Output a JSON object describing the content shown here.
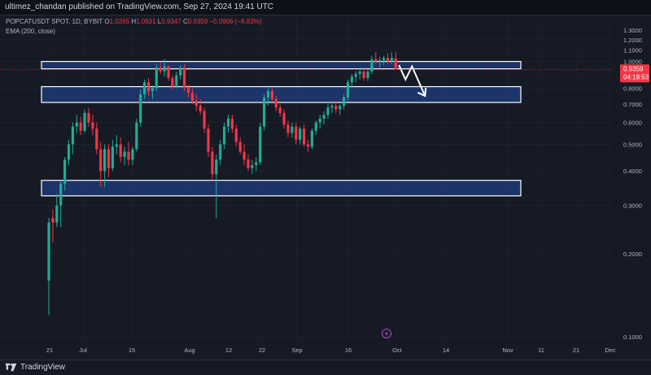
{
  "header": {
    "publisher": "ultimez_chandan published on TradingView.com, Sep 27, 2024 19:41 UTC"
  },
  "legend": {
    "symbol": "POPCATUSDT SPOT, 1D, BYBIT",
    "o_label": "O",
    "o": "1.0265",
    "h_label": "H",
    "h": "1.0831",
    "l_label": "L",
    "l": "0.9347",
    "c_label": "C",
    "c": "0.9359",
    "chg": "−0.0906 (−8.83%)",
    "ema": "EMA (200, close)"
  },
  "price_tag": {
    "price": "0.9359",
    "countdown": "04:18:53"
  },
  "footer": {
    "brand": "TradingView"
  },
  "colors": {
    "up": "#22ab94",
    "down": "#f23645",
    "zone_fill": "#1e3a75",
    "zone_border": "#ffffff",
    "bg": "#161a25"
  },
  "icons": {
    "event_marker": "lightning-icon",
    "logo": "tradingview-logo-icon"
  },
  "chart_data": {
    "type": "candlestick",
    "scale": "log",
    "y_ticks": [
      "1.3000",
      "1.2000",
      "1.1000",
      "1.0000",
      "0.9000",
      "0.8000",
      "0.7000",
      "0.6000",
      "0.5000",
      "0.4000",
      "0.3000",
      "0.2000",
      "0.1000"
    ],
    "x_ticks": [
      "21",
      "Jul",
      "15",
      "Aug",
      "12",
      "22",
      "Sep",
      "16",
      "Oct",
      "14",
      "Nov",
      "11",
      "21",
      "Dec"
    ],
    "zones": [
      {
        "low": 0.94,
        "high": 1.0
      },
      {
        "low": 0.71,
        "high": 0.81
      },
      {
        "low": 0.325,
        "high": 0.37
      }
    ],
    "projection": [
      0.97,
      0.86,
      0.96,
      0.75
    ],
    "candles": [
      [
        0.16,
        0.27,
        0.12,
        0.26
      ],
      [
        0.27,
        0.29,
        0.22,
        0.26
      ],
      [
        0.26,
        0.33,
        0.25,
        0.3
      ],
      [
        0.3,
        0.37,
        0.25,
        0.36
      ],
      [
        0.36,
        0.45,
        0.34,
        0.44
      ],
      [
        0.44,
        0.52,
        0.42,
        0.5
      ],
      [
        0.5,
        0.6,
        0.46,
        0.58
      ],
      [
        0.58,
        0.64,
        0.55,
        0.6
      ],
      [
        0.6,
        0.63,
        0.54,
        0.56
      ],
      [
        0.56,
        0.67,
        0.55,
        0.65
      ],
      [
        0.65,
        0.68,
        0.58,
        0.6
      ],
      [
        0.6,
        0.64,
        0.54,
        0.57
      ],
      [
        0.57,
        0.6,
        0.46,
        0.48
      ],
      [
        0.48,
        0.51,
        0.35,
        0.4
      ],
      [
        0.4,
        0.5,
        0.35,
        0.48
      ],
      [
        0.48,
        0.5,
        0.38,
        0.41
      ],
      [
        0.41,
        0.52,
        0.4,
        0.49
      ],
      [
        0.49,
        0.54,
        0.46,
        0.5
      ],
      [
        0.5,
        0.53,
        0.43,
        0.45
      ],
      [
        0.45,
        0.49,
        0.42,
        0.47
      ],
      [
        0.47,
        0.51,
        0.42,
        0.44
      ],
      [
        0.44,
        0.49,
        0.42,
        0.48
      ],
      [
        0.48,
        0.62,
        0.47,
        0.6
      ],
      [
        0.6,
        0.79,
        0.58,
        0.76
      ],
      [
        0.76,
        0.86,
        0.73,
        0.84
      ],
      [
        0.84,
        0.87,
        0.75,
        0.78
      ],
      [
        0.78,
        0.82,
        0.73,
        0.8
      ],
      [
        0.8,
        0.98,
        0.78,
        0.95
      ],
      [
        0.95,
        0.99,
        0.9,
        0.92
      ],
      [
        0.92,
        1.02,
        0.88,
        0.96
      ],
      [
        0.96,
        0.97,
        0.85,
        0.87
      ],
      [
        0.87,
        0.89,
        0.79,
        0.81
      ],
      [
        0.81,
        0.92,
        0.8,
        0.89
      ],
      [
        0.89,
        0.97,
        0.86,
        0.95
      ],
      [
        0.95,
        0.98,
        0.78,
        0.8
      ],
      [
        0.8,
        0.82,
        0.74,
        0.77
      ],
      [
        0.77,
        0.8,
        0.7,
        0.72
      ],
      [
        0.72,
        0.76,
        0.66,
        0.69
      ],
      [
        0.69,
        0.73,
        0.64,
        0.66
      ],
      [
        0.66,
        0.68,
        0.55,
        0.57
      ],
      [
        0.57,
        0.59,
        0.45,
        0.47
      ],
      [
        0.47,
        0.49,
        0.37,
        0.39
      ],
      [
        0.39,
        0.46,
        0.27,
        0.44
      ],
      [
        0.44,
        0.52,
        0.42,
        0.5
      ],
      [
        0.5,
        0.6,
        0.48,
        0.58
      ],
      [
        0.58,
        0.64,
        0.55,
        0.62
      ],
      [
        0.62,
        0.64,
        0.55,
        0.57
      ],
      [
        0.57,
        0.59,
        0.49,
        0.51
      ],
      [
        0.51,
        0.53,
        0.46,
        0.47
      ],
      [
        0.47,
        0.5,
        0.42,
        0.44
      ],
      [
        0.44,
        0.46,
        0.4,
        0.41
      ],
      [
        0.41,
        0.44,
        0.39,
        0.42
      ],
      [
        0.42,
        0.45,
        0.4,
        0.43
      ],
      [
        0.43,
        0.6,
        0.42,
        0.58
      ],
      [
        0.58,
        0.76,
        0.56,
        0.74
      ],
      [
        0.74,
        0.8,
        0.69,
        0.78
      ],
      [
        0.78,
        0.8,
        0.71,
        0.73
      ],
      [
        0.73,
        0.75,
        0.66,
        0.68
      ],
      [
        0.68,
        0.7,
        0.63,
        0.65
      ],
      [
        0.65,
        0.67,
        0.57,
        0.59
      ],
      [
        0.59,
        0.61,
        0.53,
        0.55
      ],
      [
        0.55,
        0.6,
        0.53,
        0.58
      ],
      [
        0.58,
        0.6,
        0.5,
        0.52
      ],
      [
        0.52,
        0.58,
        0.5,
        0.57
      ],
      [
        0.57,
        0.59,
        0.49,
        0.5
      ],
      [
        0.5,
        0.52,
        0.47,
        0.49
      ],
      [
        0.49,
        0.57,
        0.48,
        0.56
      ],
      [
        0.56,
        0.61,
        0.54,
        0.6
      ],
      [
        0.6,
        0.64,
        0.57,
        0.62
      ],
      [
        0.62,
        0.66,
        0.59,
        0.64
      ],
      [
        0.64,
        0.7,
        0.62,
        0.68
      ],
      [
        0.68,
        0.71,
        0.65,
        0.69
      ],
      [
        0.69,
        0.71,
        0.65,
        0.67
      ],
      [
        0.67,
        0.7,
        0.64,
        0.69
      ],
      [
        0.69,
        0.76,
        0.67,
        0.74
      ],
      [
        0.74,
        0.86,
        0.72,
        0.84
      ],
      [
        0.84,
        0.9,
        0.8,
        0.88
      ],
      [
        0.88,
        0.92,
        0.84,
        0.9
      ],
      [
        0.9,
        0.95,
        0.86,
        0.92
      ],
      [
        0.92,
        0.94,
        0.85,
        0.87
      ],
      [
        0.87,
        0.94,
        0.85,
        0.92
      ],
      [
        0.92,
        1.05,
        0.9,
        1.02
      ],
      [
        1.02,
        1.08,
        0.98,
        1.0
      ],
      [
        1.0,
        1.04,
        0.95,
        1.01
      ],
      [
        1.01,
        1.05,
        0.97,
        1.03
      ],
      [
        1.03,
        1.07,
        0.98,
        1.0
      ],
      [
        1.0,
        1.08,
        0.98,
        1.03
      ],
      [
        1.0265,
        1.0831,
        0.9347,
        0.9359
      ]
    ]
  }
}
